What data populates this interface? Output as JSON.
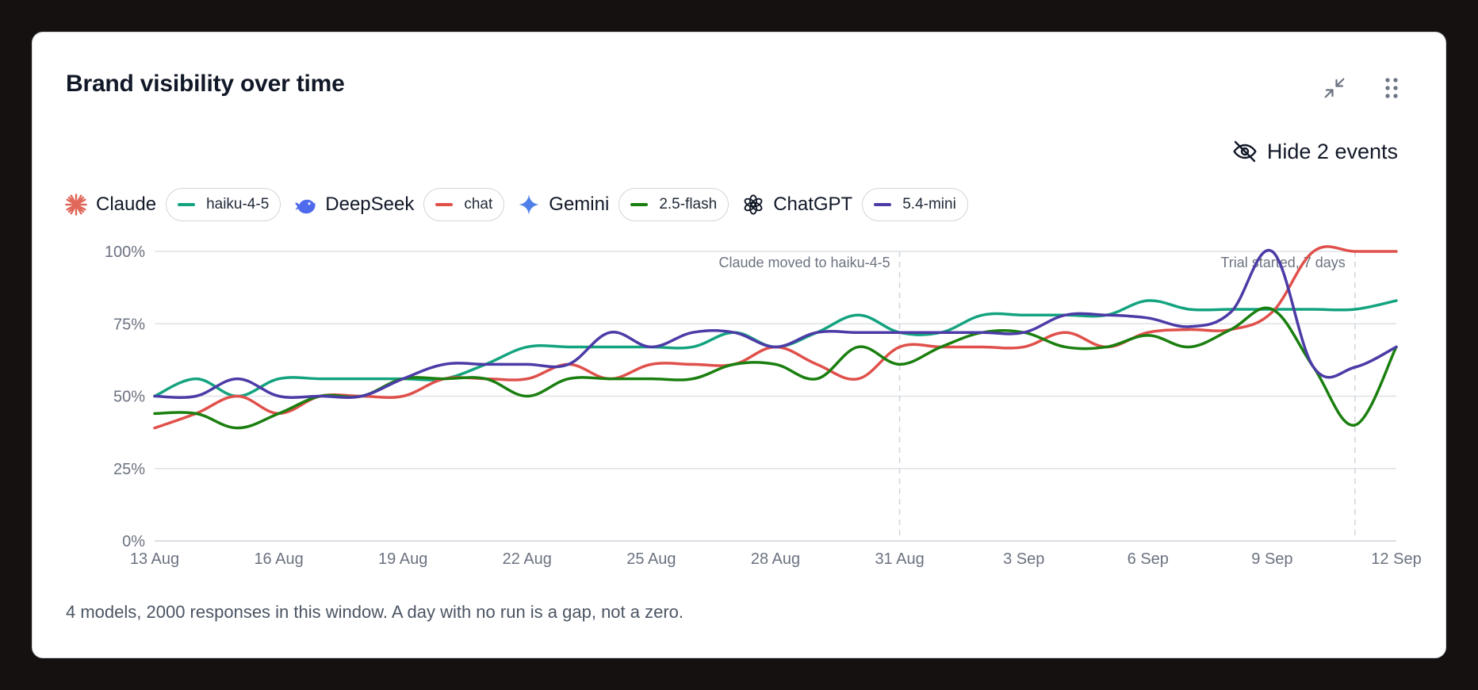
{
  "card": {
    "title": "Brand visibility over time",
    "hide_events_label": "Hide 2 events",
    "footnote": "4 models, 2000 responses in this window. A day with no run is a gap, not a zero."
  },
  "legend": [
    {
      "brand": "Claude",
      "model": "haiku-4-5",
      "brand_icon": "claude-sunburst-icon",
      "brand_color": "#e0685a",
      "color": "#14a37f"
    },
    {
      "brand": "DeepSeek",
      "model": "chat",
      "brand_icon": "deepseek-whale-icon",
      "brand_color": "#4f6bed",
      "color": "#e0504b"
    },
    {
      "brand": "Gemini",
      "model": "2.5-flash",
      "brand_icon": "gemini-sparkle-icon",
      "brand_color": "#4f80e8",
      "color": "#1a7f0f"
    },
    {
      "brand": "ChatGPT",
      "model": "5.4-mini",
      "brand_icon": "openai-knot-icon",
      "brand_color": "#111827",
      "color": "#4b3ba6"
    }
  ],
  "chart_data": {
    "type": "line",
    "x": [
      "13 Aug",
      "14 Aug",
      "15 Aug",
      "16 Aug",
      "17 Aug",
      "18 Aug",
      "19 Aug",
      "20 Aug",
      "21 Aug",
      "22 Aug",
      "23 Aug",
      "24 Aug",
      "25 Aug",
      "26 Aug",
      "27 Aug",
      "28 Aug",
      "29 Aug",
      "30 Aug",
      "31 Aug",
      "1 Sep",
      "2 Sep",
      "3 Sep",
      "4 Sep",
      "5 Sep",
      "6 Sep",
      "7 Sep",
      "8 Sep",
      "9 Sep",
      "10 Sep",
      "11 Sep",
      "12 Sep"
    ],
    "x_ticks": [
      "13 Aug",
      "16 Aug",
      "19 Aug",
      "22 Aug",
      "25 Aug",
      "28 Aug",
      "31 Aug",
      "3 Sep",
      "6 Sep",
      "9 Sep",
      "12 Sep"
    ],
    "y_ticks": [
      "0%",
      "25%",
      "50%",
      "75%",
      "100%"
    ],
    "ylim": [
      0,
      100
    ],
    "grid": true,
    "series": [
      {
        "name": "haiku-4-5",
        "color": "#14a37f",
        "values": [
          50,
          56,
          50,
          56,
          56,
          56,
          56,
          56,
          61,
          67,
          67,
          67,
          67,
          67,
          72,
          67,
          72,
          78,
          72,
          72,
          78,
          78,
          78,
          78,
          83,
          80,
          80,
          80,
          80,
          80,
          83
        ]
      },
      {
        "name": "chat",
        "color": "#e0504b",
        "values": [
          39,
          44,
          50,
          44,
          50,
          50,
          50,
          56,
          56,
          56,
          61,
          56,
          61,
          61,
          61,
          67,
          61,
          56,
          67,
          67,
          67,
          67,
          72,
          67,
          72,
          73,
          73,
          79,
          100,
          100,
          100
        ]
      },
      {
        "name": "2.5-flash",
        "color": "#1a7f0f",
        "values": [
          44,
          44,
          39,
          44,
          50,
          50,
          56,
          56,
          56,
          50,
          56,
          56,
          56,
          56,
          61,
          61,
          56,
          67,
          61,
          67,
          72,
          72,
          67,
          67,
          71,
          67,
          73,
          80,
          60,
          40,
          67
        ]
      },
      {
        "name": "5.4-mini",
        "color": "#4b3ba6",
        "values": [
          50,
          50,
          56,
          50,
          50,
          50,
          56,
          61,
          61,
          61,
          61,
          72,
          67,
          72,
          72,
          67,
          72,
          72,
          72,
          72,
          72,
          72,
          78,
          78,
          77,
          74,
          79,
          100,
          60,
          60,
          67
        ]
      }
    ],
    "events": [
      {
        "x": "31 Aug",
        "label": "Claude moved to haiku-4-5"
      },
      {
        "x": "11 Sep",
        "label": "Trial started, 7 days"
      }
    ]
  }
}
